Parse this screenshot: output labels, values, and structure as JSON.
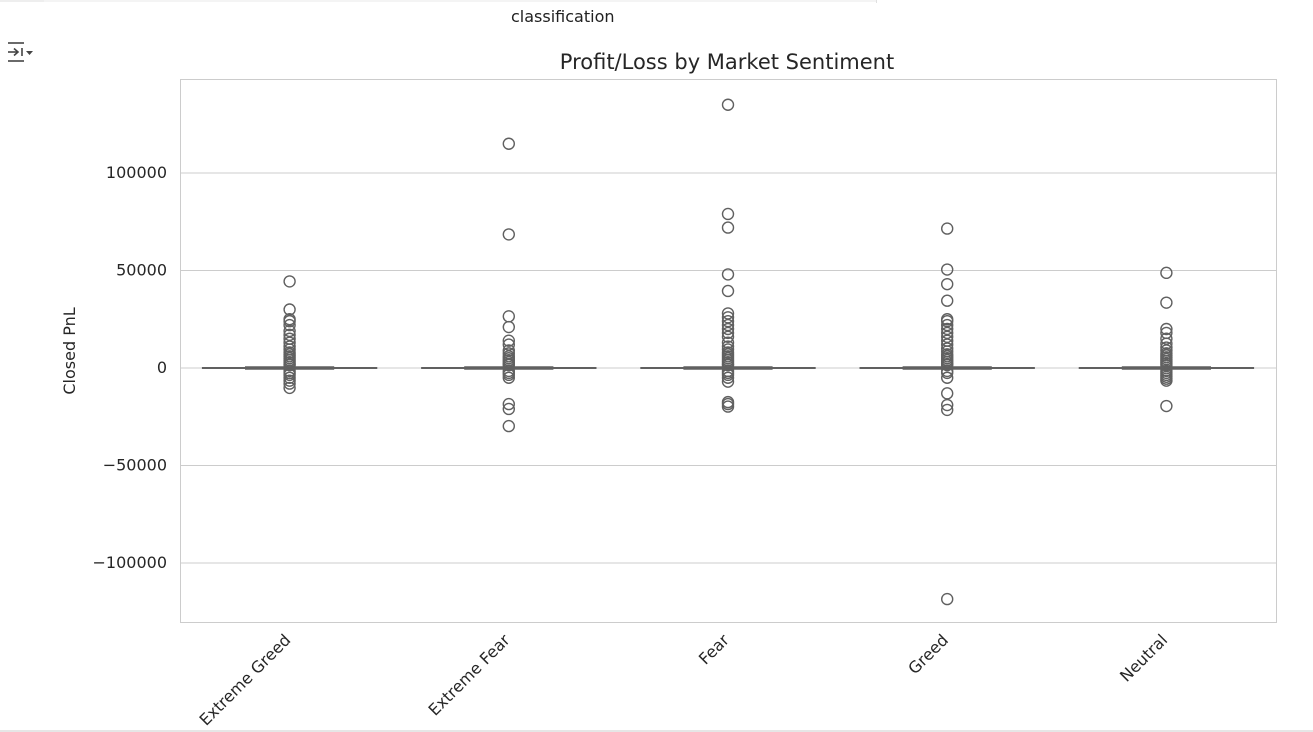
{
  "cell": {
    "header_label": "classification",
    "output_icon": "output-toggle-icon"
  },
  "chart_data": {
    "type": "box",
    "title": "Profit/Loss by Market Sentiment",
    "xlabel": "",
    "ylabel": "Closed PnL",
    "categories": [
      "Extreme Greed",
      "Extreme Fear",
      "Fear",
      "Greed",
      "Neutral"
    ],
    "ylim": [
      -130000,
      145000
    ],
    "yticks": [
      100000,
      50000,
      0,
      -50000,
      -100000
    ],
    "ytick_labels": [
      "100000",
      "50000",
      "0",
      "−50000",
      "−100000"
    ],
    "grid": true,
    "box_color": "#606060",
    "boxes": [
      {
        "category": "Extreme Greed",
        "q1": 0,
        "median": 0,
        "q3": 0,
        "whisker_low": 0,
        "whisker_high": 0,
        "outliers": [
          44400,
          30000,
          25000,
          24000,
          22000,
          19000,
          17000,
          15000,
          13000,
          11000,
          9500,
          8000,
          7000,
          6000,
          5000,
          4000,
          3000,
          2000,
          1500,
          -1500,
          -2500,
          -3500,
          -5000,
          -6500,
          -8000,
          -10200
        ]
      },
      {
        "category": "Extreme Fear",
        "q1": 0,
        "median": 0,
        "q3": 0,
        "whisker_low": 0,
        "whisker_high": 0,
        "outliers": [
          115000,
          68500,
          26500,
          21000,
          14000,
          12000,
          9000,
          7500,
          6000,
          5000,
          4000,
          3000,
          2000,
          1500,
          -1500,
          -2500,
          -3500,
          -5000,
          -18500,
          -21000,
          -29800
        ]
      },
      {
        "category": "Fear",
        "q1": 0,
        "median": 0,
        "q3": 0,
        "whisker_low": 0,
        "whisker_high": 0,
        "outliers": [
          135000,
          79000,
          72000,
          48000,
          39500,
          28000,
          26000,
          24000,
          22000,
          20000,
          18000,
          16000,
          13000,
          11000,
          9500,
          8000,
          7000,
          6000,
          5000,
          4000,
          3000,
          2000,
          1500,
          -1500,
          -2500,
          -3500,
          -5000,
          -7000,
          -17500,
          -18500,
          -19800
        ]
      },
      {
        "category": "Greed",
        "q1": 0,
        "median": 0,
        "q3": 0,
        "whisker_low": 0,
        "whisker_high": 0,
        "outliers": [
          71500,
          50500,
          43000,
          34500,
          25000,
          24000,
          22000,
          20000,
          18000,
          16000,
          14000,
          12000,
          10000,
          8500,
          7000,
          6000,
          5000,
          4000,
          3000,
          2000,
          1500,
          -1500,
          -2500,
          -5000,
          -13000,
          -19000,
          -21500,
          -118500
        ]
      },
      {
        "category": "Neutral",
        "q1": 0,
        "median": 0,
        "q3": 0,
        "whisker_low": 0,
        "whisker_high": 0,
        "outliers": [
          48800,
          33500,
          20000,
          18000,
          15000,
          12500,
          10500,
          9000,
          7500,
          6500,
          5500,
          4500,
          3500,
          2500,
          1500,
          -1500,
          -2500,
          -3500,
          -4500,
          -5500,
          -6500,
          -19500
        ]
      }
    ]
  }
}
